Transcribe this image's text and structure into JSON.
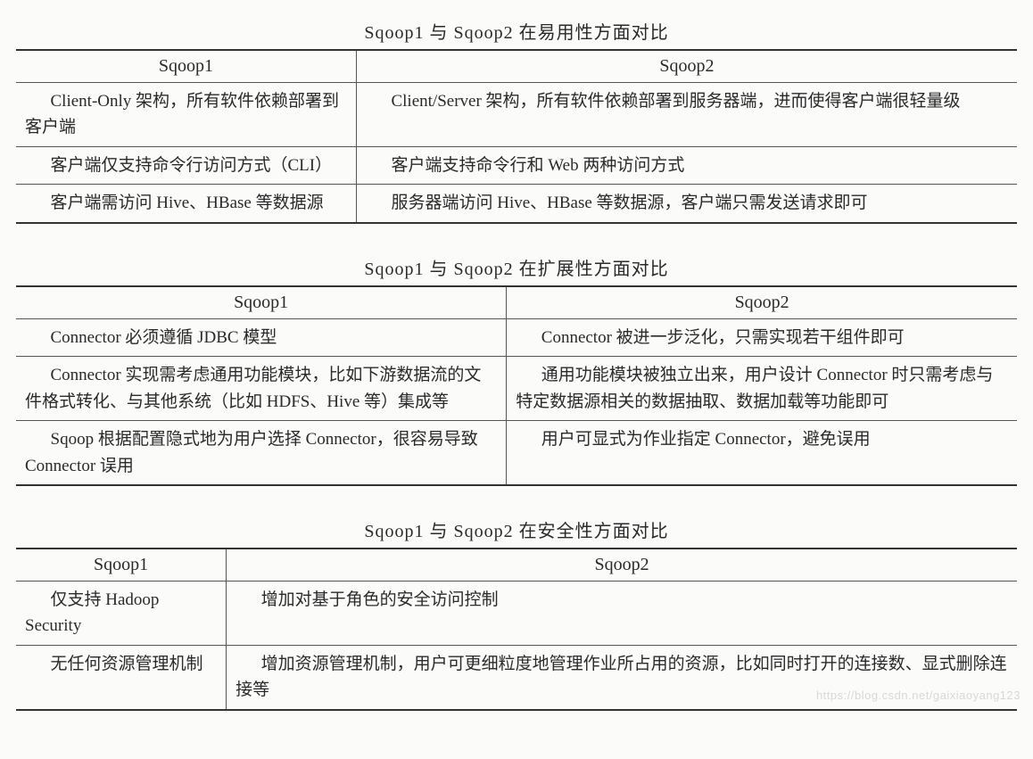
{
  "tables": [
    {
      "title": "Sqoop1 与 Sqoop2 在易用性方面对比",
      "col_widths": [
        "34%",
        "66%"
      ],
      "headers": [
        "Sqoop1",
        "Sqoop2"
      ],
      "rows": [
        [
          "Client-Only 架构，所有软件依赖部署到客户端",
          "Client/Server 架构，所有软件依赖部署到服务器端，进而使得客户端很轻量级"
        ],
        [
          "客户端仅支持命令行访问方式（CLI）",
          "客户端支持命令行和 Web 两种访问方式"
        ],
        [
          "客户端需访问 Hive、HBase 等数据源",
          "服务器端访问 Hive、HBase 等数据源，客户端只需发送请求即可"
        ]
      ]
    },
    {
      "title": "Sqoop1 与 Sqoop2 在扩展性方面对比",
      "col_widths": [
        "49%",
        "51%"
      ],
      "headers": [
        "Sqoop1",
        "Sqoop2"
      ],
      "rows": [
        [
          "Connector 必须遵循 JDBC 模型",
          "Connector 被进一步泛化，只需实现若干组件即可"
        ],
        [
          "Connector 实现需考虑通用功能模块，比如下游数据流的文件格式转化、与其他系统（比如 HDFS、Hive 等）集成等",
          "通用功能模块被独立出来，用户设计 Connector 时只需考虑与特定数据源相关的数据抽取、数据加载等功能即可"
        ],
        [
          "Sqoop 根据配置隐式地为用户选择 Connector，很容易导致 Connector 误用",
          "用户可显式为作业指定 Connector，避免误用"
        ]
      ]
    },
    {
      "title": "Sqoop1 与 Sqoop2 在安全性方面对比",
      "col_widths": [
        "21%",
        "79%"
      ],
      "headers": [
        "Sqoop1",
        "Sqoop2"
      ],
      "rows": [
        [
          "仅支持 Hadoop Security",
          "增加对基于角色的安全访问控制"
        ],
        [
          "无任何资源管理机制",
          "增加资源管理机制，用户可更细粒度地管理作业所占用的资源，比如同时打开的连接数、显式删除连接等"
        ]
      ]
    }
  ],
  "style": {
    "background_color": "#fbfbfa",
    "text_color": "#2a2a2a",
    "border_color": "#555",
    "outer_border_color": "#333",
    "title_fontsize": 20,
    "header_fontsize": 20,
    "cell_fontsize": 19,
    "font_family": "serif"
  },
  "watermark": "https://blog.csdn.net/gaixiaoyang123"
}
